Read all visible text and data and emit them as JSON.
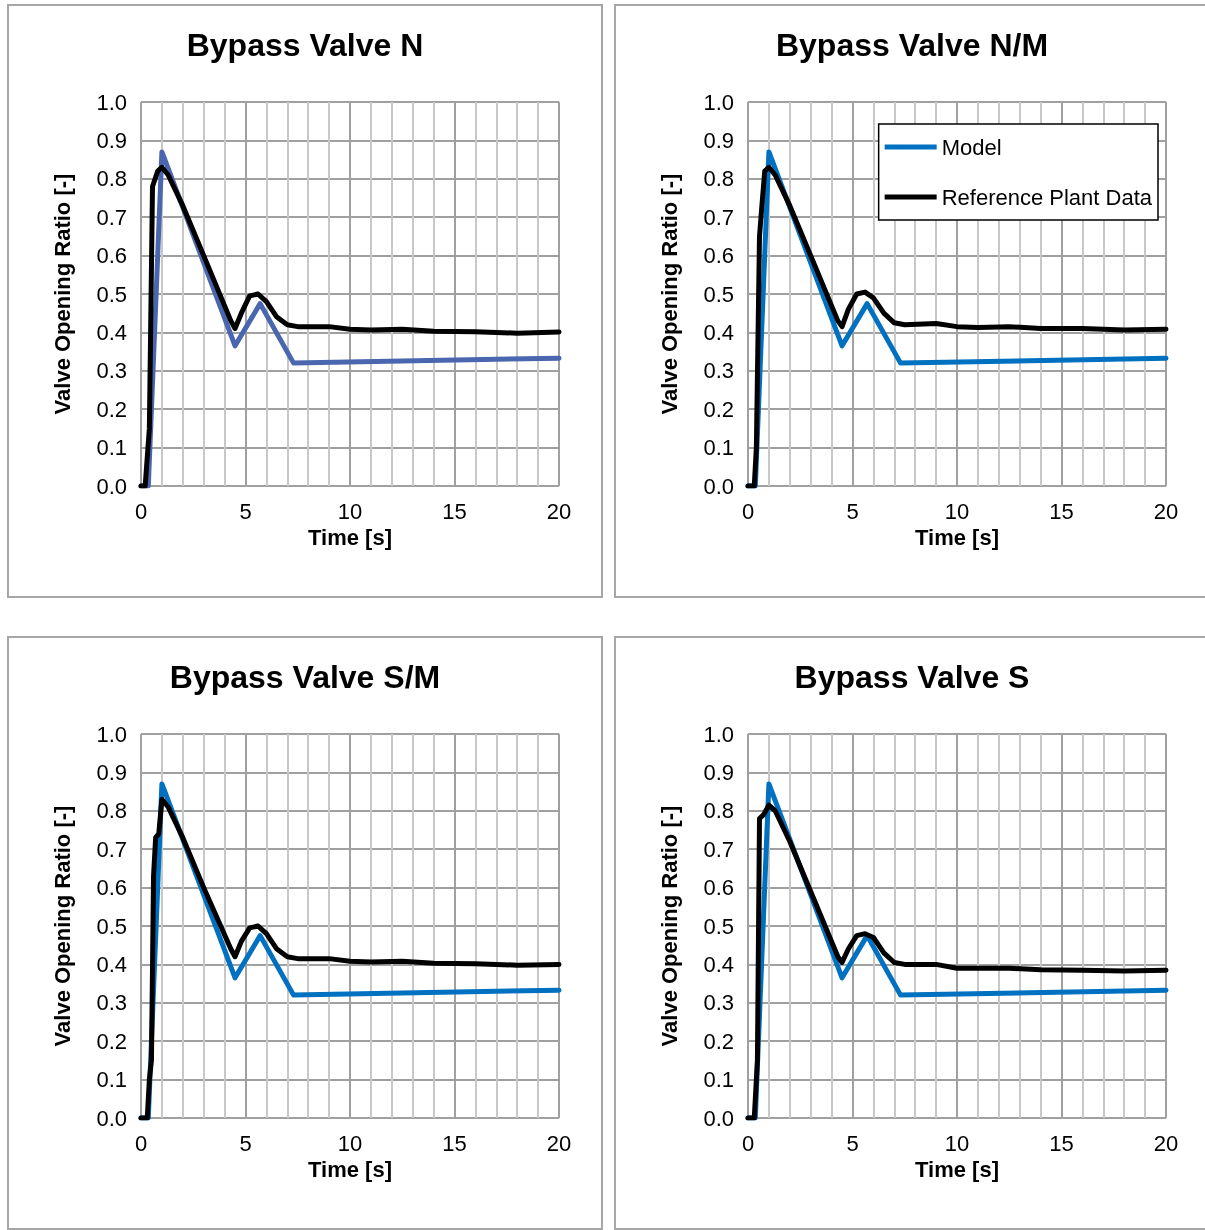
{
  "chart_data": [
    {
      "type": "line",
      "title": "Bypass Valve N",
      "xlabel": "Time [s]",
      "ylabel": "Valve Opening Ratio [-]",
      "xlim": [
        0,
        20
      ],
      "xticks": [
        0,
        5,
        10,
        15,
        20
      ],
      "ylim": [
        0,
        1
      ],
      "yticks": [
        {
          "value": 0,
          "label": "0.0"
        },
        {
          "value": 0.1,
          "label": "0.1"
        },
        {
          "value": 0.2,
          "label": "0.2"
        },
        {
          "value": 0.3,
          "label": "0.3"
        },
        {
          "value": 0.4,
          "label": "0.4"
        },
        {
          "value": 0.5,
          "label": "0.5"
        },
        {
          "value": 0.6,
          "label": "0.6"
        },
        {
          "value": 0.7,
          "label": "0.7"
        },
        {
          "value": 0.8,
          "label": "0.8"
        },
        {
          "value": 0.9,
          "label": "0.9"
        },
        {
          "value": 1,
          "label": "1.0"
        }
      ],
      "grid": true,
      "legend": false,
      "series": [
        {
          "color": "#4a66ae",
          "x": [
            0,
            0.35,
            1.0,
            4.5,
            5.7,
            7.3,
            20
          ],
          "values": [
            0,
            0,
            0.87,
            0.365,
            0.475,
            0.32,
            0.333
          ]
        },
        {
          "color": "#000000",
          "x": [
            0,
            0.2,
            0.4,
            0.55,
            0.8,
            1.0,
            1.3,
            2,
            3,
            4.3,
            4.5,
            4.8,
            5.2,
            5.6,
            6,
            6.5,
            7,
            7.5,
            9,
            10,
            11,
            12.5,
            14,
            16,
            18,
            20
          ],
          "values": [
            0,
            0,
            0.15,
            0.78,
            0.82,
            0.83,
            0.81,
            0.73,
            0.6,
            0.43,
            0.41,
            0.45,
            0.495,
            0.5,
            0.48,
            0.44,
            0.42,
            0.415,
            0.415,
            0.408,
            0.406,
            0.408,
            0.403,
            0.402,
            0.398,
            0.401
          ]
        }
      ]
    },
    {
      "type": "line",
      "title": "Bypass Valve N/M",
      "xlabel": "Time [s]",
      "ylabel": "Valve Opening Ratio [-]",
      "xlim": [
        0,
        20
      ],
      "xticks": [
        0,
        5,
        10,
        15,
        20
      ],
      "ylim": [
        0,
        1
      ],
      "yticks": [
        {
          "value": 0,
          "label": "0.0"
        },
        {
          "value": 0.1,
          "label": "0.1"
        },
        {
          "value": 0.2,
          "label": "0.2"
        },
        {
          "value": 0.3,
          "label": "0.3"
        },
        {
          "value": 0.4,
          "label": "0.4"
        },
        {
          "value": 0.5,
          "label": "0.5"
        },
        {
          "value": 0.6,
          "label": "0.6"
        },
        {
          "value": 0.7,
          "label": "0.7"
        },
        {
          "value": 0.8,
          "label": "0.8"
        },
        {
          "value": 0.9,
          "label": "0.9"
        },
        {
          "value": 1,
          "label": "1.0"
        }
      ],
      "grid": true,
      "legend": "top right",
      "series": [
        {
          "name": "Model",
          "color": "#0070c0",
          "x": [
            0,
            0.35,
            1.0,
            4.5,
            5.7,
            7.3,
            20
          ],
          "values": [
            0,
            0,
            0.87,
            0.365,
            0.475,
            0.32,
            0.333
          ]
        },
        {
          "name": "Reference Plant Data",
          "color": "#000000",
          "x": [
            0,
            0.3,
            0.4,
            0.55,
            0.65,
            0.8,
            1.0,
            1.3,
            2,
            3,
            4.3,
            4.5,
            4.8,
            5.2,
            5.6,
            6,
            6.5,
            7,
            7.5,
            9,
            10,
            11,
            12.5,
            14,
            16,
            18,
            20
          ],
          "values": [
            0,
            0,
            0.1,
            0.65,
            0.72,
            0.82,
            0.83,
            0.81,
            0.73,
            0.6,
            0.43,
            0.415,
            0.46,
            0.5,
            0.505,
            0.49,
            0.45,
            0.425,
            0.42,
            0.423,
            0.415,
            0.413,
            0.415,
            0.41,
            0.41,
            0.406,
            0.408
          ]
        }
      ]
    },
    {
      "type": "line",
      "title": "Bypass Valve S/M",
      "xlabel": "Time [s]",
      "ylabel": "Valve Opening Ratio [-]",
      "xlim": [
        0,
        20
      ],
      "xticks": [
        0,
        5,
        10,
        15,
        20
      ],
      "ylim": [
        0,
        1
      ],
      "yticks": [
        {
          "value": 0,
          "label": "0.0"
        },
        {
          "value": 0.1,
          "label": "0.1"
        },
        {
          "value": 0.2,
          "label": "0.2"
        },
        {
          "value": 0.3,
          "label": "0.3"
        },
        {
          "value": 0.4,
          "label": "0.4"
        },
        {
          "value": 0.5,
          "label": "0.5"
        },
        {
          "value": 0.6,
          "label": "0.6"
        },
        {
          "value": 0.7,
          "label": "0.7"
        },
        {
          "value": 0.8,
          "label": "0.8"
        },
        {
          "value": 0.9,
          "label": "0.9"
        },
        {
          "value": 1,
          "label": "1.0"
        }
      ],
      "grid": true,
      "legend": false,
      "series": [
        {
          "color": "#0070c0",
          "x": [
            0,
            0.35,
            1.0,
            4.5,
            5.7,
            7.3,
            20
          ],
          "values": [
            0,
            0,
            0.87,
            0.365,
            0.475,
            0.32,
            0.333
          ]
        },
        {
          "color": "#000000",
          "x": [
            0,
            0.3,
            0.4,
            0.5,
            0.6,
            0.7,
            0.85,
            1.0,
            1.3,
            2,
            3,
            4.3,
            4.5,
            4.8,
            5.2,
            5.6,
            6,
            6.5,
            7,
            7.5,
            9,
            10,
            11,
            12.5,
            14,
            16,
            18,
            20
          ],
          "values": [
            0,
            0,
            0.1,
            0.15,
            0.63,
            0.73,
            0.74,
            0.83,
            0.81,
            0.73,
            0.6,
            0.44,
            0.42,
            0.46,
            0.495,
            0.5,
            0.48,
            0.44,
            0.42,
            0.415,
            0.415,
            0.408,
            0.406,
            0.408,
            0.403,
            0.402,
            0.398,
            0.4
          ]
        }
      ]
    },
    {
      "type": "line",
      "title": "Bypass Valve S",
      "xlabel": "Time [s]",
      "ylabel": "Valve Opening Ratio [-]",
      "xlim": [
        0,
        20
      ],
      "xticks": [
        0,
        5,
        10,
        15,
        20
      ],
      "ylim": [
        0,
        1
      ],
      "yticks": [
        {
          "value": 0,
          "label": "0.0"
        },
        {
          "value": 0.1,
          "label": "0.1"
        },
        {
          "value": 0.2,
          "label": "0.2"
        },
        {
          "value": 0.3,
          "label": "0.3"
        },
        {
          "value": 0.4,
          "label": "0.4"
        },
        {
          "value": 0.5,
          "label": "0.5"
        },
        {
          "value": 0.6,
          "label": "0.6"
        },
        {
          "value": 0.7,
          "label": "0.7"
        },
        {
          "value": 0.8,
          "label": "0.8"
        },
        {
          "value": 0.9,
          "label": "0.9"
        },
        {
          "value": 1,
          "label": "1.0"
        }
      ],
      "grid": true,
      "legend": false,
      "series": [
        {
          "color": "#0070c0",
          "x": [
            0,
            0.35,
            1.0,
            4.5,
            5.7,
            7.3,
            20
          ],
          "values": [
            0,
            0,
            0.87,
            0.365,
            0.475,
            0.32,
            0.333
          ]
        },
        {
          "color": "#000000",
          "x": [
            0,
            0.3,
            0.45,
            0.55,
            0.75,
            1.0,
            1.3,
            2,
            3,
            4.3,
            4.5,
            4.8,
            5.2,
            5.6,
            6,
            6.5,
            7,
            7.5,
            9,
            10,
            11,
            12.5,
            14,
            16,
            18,
            20
          ],
          "values": [
            0,
            0,
            0.15,
            0.78,
            0.79,
            0.815,
            0.8,
            0.72,
            0.59,
            0.42,
            0.405,
            0.44,
            0.475,
            0.48,
            0.47,
            0.43,
            0.405,
            0.4,
            0.4,
            0.39,
            0.39,
            0.39,
            0.386,
            0.385,
            0.383,
            0.385
          ]
        }
      ]
    }
  ]
}
